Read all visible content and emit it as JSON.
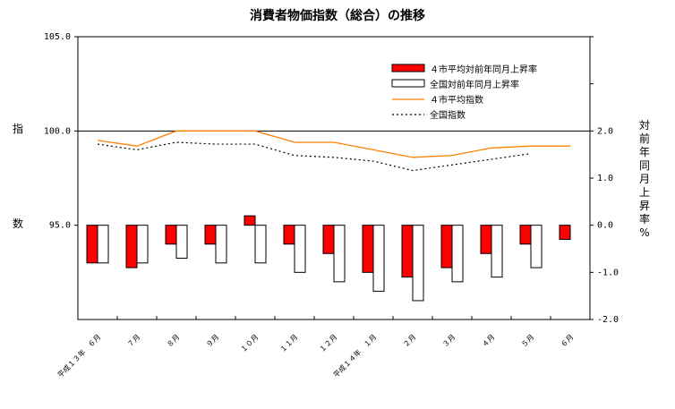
{
  "chart_data": {
    "type": "bar+line",
    "title": "消費者物価指数（総合）の推移",
    "left_axis": {
      "label_chars": [
        "指",
        "数"
      ],
      "ylim": [
        90,
        105
      ],
      "ticks": [
        "95.0",
        "100.0",
        "105.0"
      ],
      "tick_values": [
        95,
        100,
        105
      ]
    },
    "right_axis": {
      "label_chars": [
        "対",
        "前",
        "年",
        "同",
        "月",
        "上",
        "昇",
        "率",
        "%"
      ],
      "ylim": [
        -2.0,
        4.0
      ],
      "ticks": [
        "-2.0",
        "-1.0",
        "0.0",
        "1.0",
        "2.0"
      ],
      "tick_values": [
        -2,
        -1,
        0,
        1,
        2
      ]
    },
    "categories": [
      "平成１３年　６月",
      "７月",
      "８月",
      "９月",
      "１０月",
      "１１月",
      "１２月",
      "平成１４年　１月",
      "２月",
      "３月",
      "４月",
      "５月",
      "６月"
    ],
    "series": [
      {
        "name": "４市平均対前年同月上昇率",
        "type": "bar",
        "axis": "right",
        "color": "#ff0000",
        "values": [
          -0.8,
          -0.9,
          -0.4,
          -0.4,
          0.2,
          -0.4,
          -0.6,
          -1.0,
          -1.1,
          -0.9,
          -0.6,
          -0.4,
          -0.3
        ]
      },
      {
        "name": "全国対前年同月上昇率",
        "type": "bar",
        "axis": "right",
        "color": "#ffffff",
        "values": [
          -0.8,
          -0.8,
          -0.7,
          -0.8,
          -0.8,
          -1.0,
          -1.2,
          -1.4,
          -1.6,
          -1.2,
          -1.1,
          -0.9,
          null
        ]
      },
      {
        "name": "４市平均指数",
        "type": "line",
        "axis": "left",
        "color": "#ff8000",
        "values": [
          99.5,
          99.2,
          100.0,
          100.0,
          100.0,
          99.4,
          99.4,
          99.0,
          98.6,
          98.7,
          99.1,
          99.2,
          99.2
        ]
      },
      {
        "name": "全国指数",
        "type": "line",
        "axis": "left",
        "style": "dotted",
        "color": "#000000",
        "values": [
          99.3,
          99.0,
          99.4,
          99.3,
          99.3,
          98.7,
          98.6,
          98.4,
          97.9,
          98.2,
          98.5,
          98.8,
          null
        ]
      }
    ],
    "reference_line": 100.0,
    "legend_position": "top-right"
  }
}
